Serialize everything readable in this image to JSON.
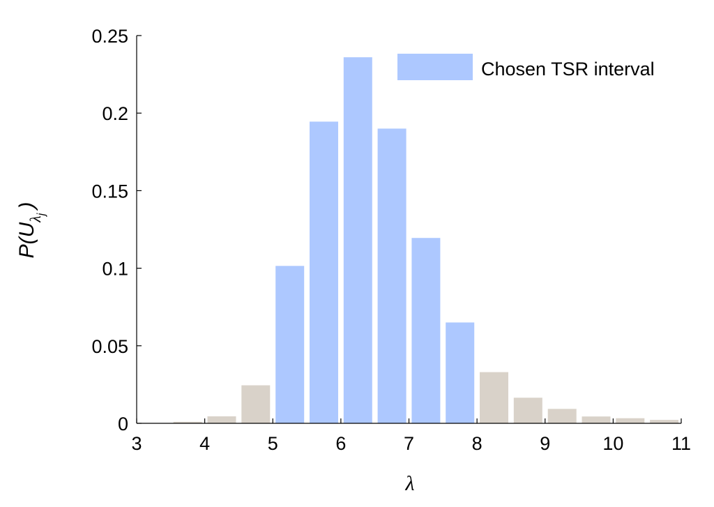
{
  "chart_data": {
    "type": "bar",
    "title": "",
    "xlabel": "λ",
    "ylabel": {
      "main": "P(U",
      "sub": "λ",
      "subsub": "j",
      "close": ")"
    },
    "xlim": [
      3,
      11
    ],
    "ylim": [
      0,
      0.25
    ],
    "xticks": [
      "3",
      "4",
      "5",
      "6",
      "7",
      "8",
      "9",
      "10",
      "11"
    ],
    "yticks": [
      "0",
      "0.05",
      "0.1",
      "0.15",
      "0.2",
      "0.25"
    ],
    "legend": {
      "label": "Chosen TSR interval",
      "position": "top-right"
    },
    "colors": {
      "highlight": "#adc8ff",
      "other": "#d9d2c9"
    },
    "bars": [
      {
        "x": 3.75,
        "value": 0.001,
        "highlight": false
      },
      {
        "x": 4.25,
        "value": 0.0045,
        "highlight": false
      },
      {
        "x": 4.75,
        "value": 0.0245,
        "highlight": false
      },
      {
        "x": 5.25,
        "value": 0.1015,
        "highlight": true
      },
      {
        "x": 5.75,
        "value": 0.1945,
        "highlight": true
      },
      {
        "x": 6.25,
        "value": 0.236,
        "highlight": true
      },
      {
        "x": 6.75,
        "value": 0.19,
        "highlight": true
      },
      {
        "x": 7.25,
        "value": 0.1195,
        "highlight": true
      },
      {
        "x": 7.75,
        "value": 0.065,
        "highlight": true
      },
      {
        "x": 8.25,
        "value": 0.033,
        "highlight": false
      },
      {
        "x": 8.75,
        "value": 0.0165,
        "highlight": false
      },
      {
        "x": 9.25,
        "value": 0.0093,
        "highlight": false
      },
      {
        "x": 9.75,
        "value": 0.0044,
        "highlight": false
      },
      {
        "x": 10.25,
        "value": 0.0033,
        "highlight": false
      },
      {
        "x": 10.75,
        "value": 0.0022,
        "highlight": false
      }
    ]
  }
}
